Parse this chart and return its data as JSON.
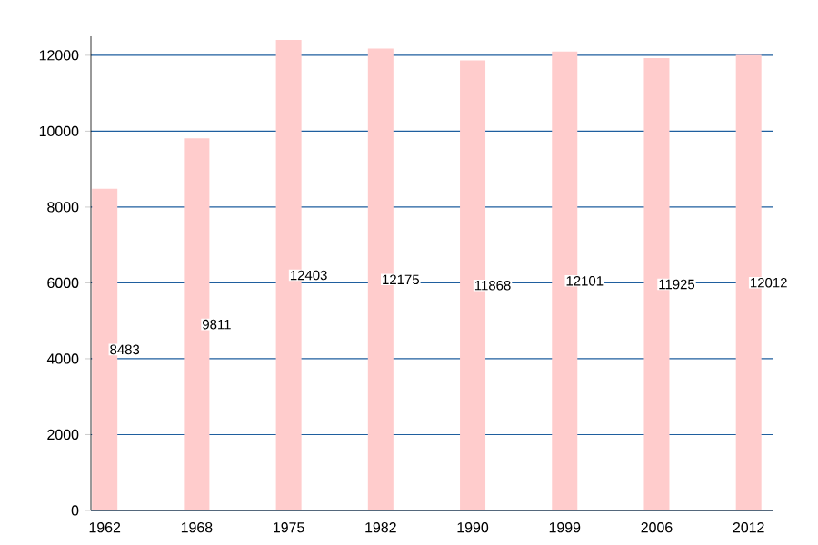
{
  "chart_data": {
    "type": "bar",
    "categories": [
      "1962",
      "1968",
      "1975",
      "1982",
      "1990",
      "1999",
      "2006",
      "2012"
    ],
    "values": [
      8483,
      9811,
      12403,
      12175,
      11868,
      12101,
      11925,
      12012
    ],
    "color": "#ffcccc",
    "ylim": [
      0,
      12500
    ],
    "yticks": [
      0,
      2000,
      4000,
      6000,
      8000,
      10000,
      12000
    ],
    "grid": "y",
    "data_labels": true
  }
}
